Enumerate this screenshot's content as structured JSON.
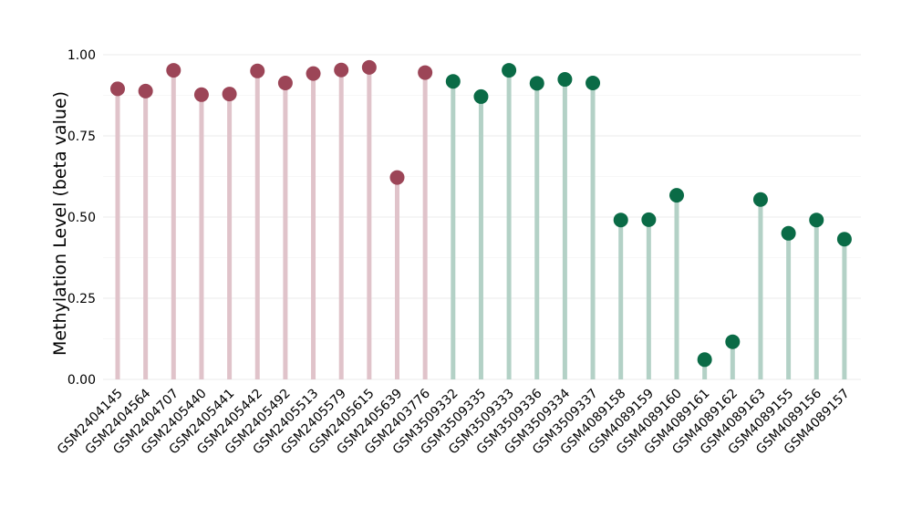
{
  "chart_data": {
    "type": "lollipop",
    "ylabel": "Methylation Level (beta value)",
    "xlabel": "",
    "ylim": [
      0,
      1
    ],
    "y_ticks": [
      "0.00",
      "0.25",
      "0.50",
      "0.75",
      "1.00"
    ],
    "grid": true,
    "categories": [
      "GSM2404145",
      "GSM2404564",
      "GSM2404707",
      "GSM2405440",
      "GSM2405441",
      "GSM2405442",
      "GSM2405492",
      "GSM2405513",
      "GSM2405579",
      "GSM2405615",
      "GSM2405639",
      "GSM2403776",
      "GSM3509332",
      "GSM3509335",
      "GSM3509333",
      "GSM3509336",
      "GSM3509334",
      "GSM3509337",
      "GSM4089158",
      "GSM4089159",
      "GSM4089160",
      "GSM4089161",
      "GSM4089162",
      "GSM4089163",
      "GSM4089155",
      "GSM4089156",
      "GSM4089157"
    ],
    "values": [
      0.895,
      0.888,
      0.952,
      0.877,
      0.879,
      0.95,
      0.913,
      0.942,
      0.953,
      0.961,
      0.622,
      0.945,
      0.918,
      0.871,
      0.952,
      0.912,
      0.924,
      0.913,
      0.491,
      0.492,
      0.567,
      0.061,
      0.116,
      0.554,
      0.45,
      0.491,
      0.432
    ],
    "groups": [
      0,
      0,
      0,
      0,
      0,
      0,
      0,
      0,
      0,
      0,
      0,
      0,
      1,
      1,
      1,
      1,
      1,
      1,
      1,
      1,
      1,
      1,
      1,
      1,
      1,
      1,
      1
    ],
    "colors": {
      "group0_point": "#9c4557",
      "group0_stem": "#e0c3ca",
      "group1_point": "#0a6b46",
      "group1_stem": "#b3d1c6",
      "grid_major": "#ebebeb",
      "grid_minor": "#f5f5f5"
    }
  }
}
